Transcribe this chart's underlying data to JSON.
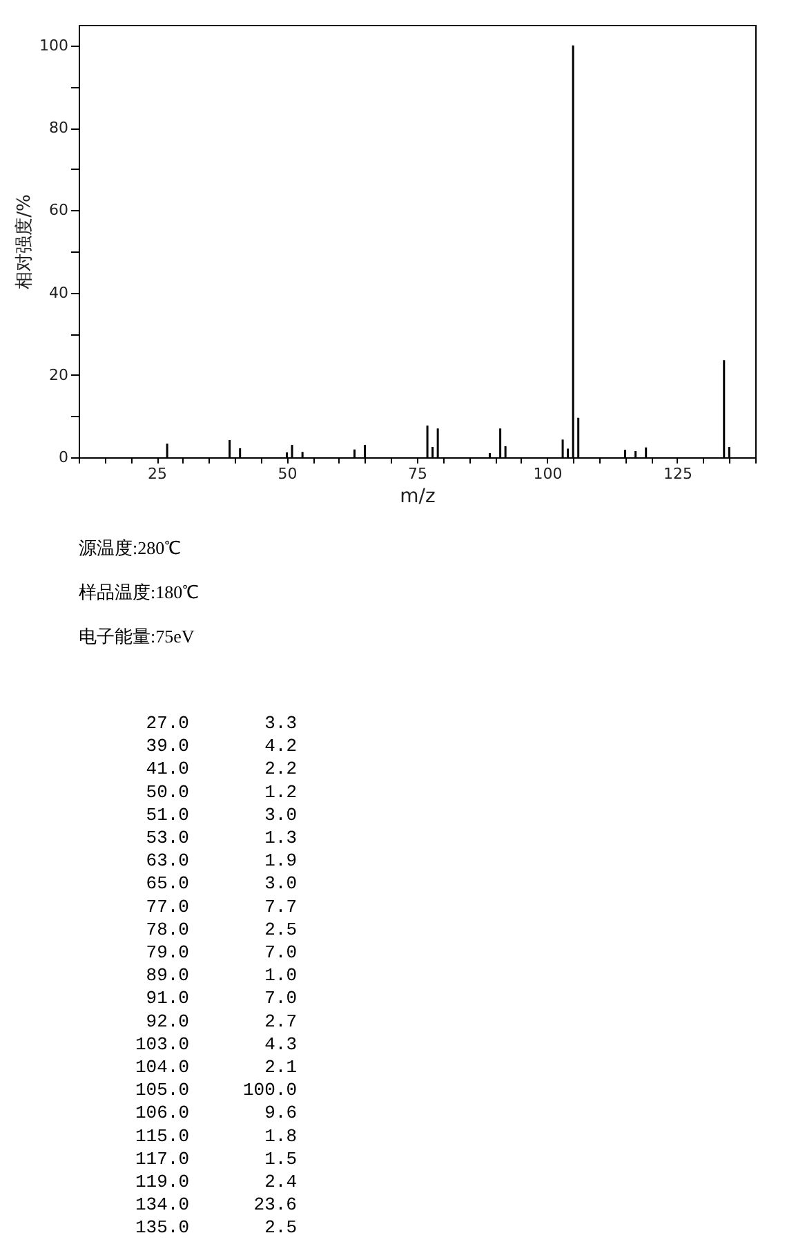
{
  "chart_data": {
    "type": "bar",
    "xlabel": "m/z",
    "ylabel": "相对强度/%",
    "x": [
      27,
      39,
      41,
      50,
      51,
      53,
      63,
      65,
      77,
      78,
      79,
      89,
      91,
      92,
      103,
      104,
      105,
      106,
      115,
      117,
      119,
      134,
      135
    ],
    "series": [
      {
        "color": "#000000",
        "values": [
          3.3,
          4.2,
          2.2,
          1.2,
          3.0,
          1.3,
          1.9,
          3.0,
          7.7,
          2.5,
          7.0,
          1.0,
          7.0,
          2.7,
          4.3,
          2.1,
          100.0,
          9.6,
          1.8,
          1.5,
          2.4,
          23.6,
          2.5
        ]
      }
    ],
    "xlim": [
      10,
      140
    ],
    "xticks": [
      {
        "value": 10,
        "label": null
      },
      {
        "value": 15,
        "label": null
      },
      {
        "value": 20,
        "label": null
      },
      25,
      {
        "value": 30,
        "label": null
      },
      {
        "value": 35,
        "label": null
      },
      {
        "value": 40,
        "label": null
      },
      {
        "value": 45,
        "label": null
      },
      50,
      {
        "value": 55,
        "label": null
      },
      {
        "value": 60,
        "label": null
      },
      {
        "value": 65,
        "label": null
      },
      {
        "value": 70,
        "label": null
      },
      75,
      {
        "value": 80,
        "label": null
      },
      {
        "value": 85,
        "label": null
      },
      {
        "value": 90,
        "label": null
      },
      {
        "value": 95,
        "label": null
      },
      100,
      {
        "value": 105,
        "label": null
      },
      {
        "value": 110,
        "label": null
      },
      {
        "value": 115,
        "label": null
      },
      {
        "value": 120,
        "label": null
      },
      125,
      {
        "value": 130,
        "label": null
      },
      {
        "value": 135,
        "label": null
      },
      {
        "value": 140,
        "label": null
      }
    ],
    "ylim": [
      0,
      105
    ],
    "yticks": [
      0,
      {
        "value": 10,
        "label": null
      },
      20,
      {
        "value": 30,
        "label": null
      },
      40,
      {
        "value": 50,
        "label": null
      },
      60,
      {
        "value": 70,
        "label": null
      },
      80,
      {
        "value": 90,
        "label": null
      },
      100
    ],
    "grid": false,
    "annotations": [
      "源温度:280℃",
      "样品温度:180℃",
      "电子能量:75eV",
      "27.0 3.3",
      "39.0 4.2",
      "41.0 2.2",
      "50.0 1.2",
      "51.0 3.0",
      "53.0 1.3",
      "63.0 1.9",
      "65.0 3.0",
      "77.0 7.7",
      "78.0 2.5",
      "79.0 7.0",
      "89.0 1.0",
      "91.0 7.0",
      "92.0 2.7",
      "103.0 4.3",
      "104.0 2.1",
      "105.0 100.0",
      "106.0 9.6",
      "115.0 1.8",
      "117.0 1.5",
      "119.0 2.4",
      "134.0 23.6",
      "135.0 2.5"
    ]
  }
}
